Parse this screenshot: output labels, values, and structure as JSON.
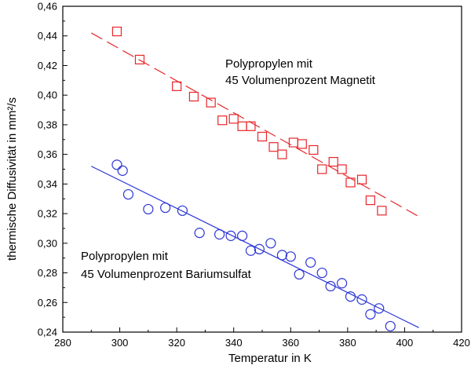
{
  "chart_data": {
    "type": "scatter",
    "title": "",
    "xlabel": "Temperatur in K",
    "ylabel": "thermische Diffusivität in mm²/s",
    "xlim": [
      280,
      420
    ],
    "ylim": [
      0.24,
      0.46
    ],
    "x_ticks": [
      280,
      300,
      320,
      340,
      360,
      380,
      400,
      420
    ],
    "y_ticks": [
      0.24,
      0.26,
      0.28,
      0.3,
      0.32,
      0.34,
      0.36,
      0.38,
      0.4,
      0.42,
      0.44,
      0.46
    ],
    "x_tick_labels": [
      "280",
      "300",
      "320",
      "340",
      "360",
      "380",
      "400",
      "420"
    ],
    "y_tick_labels": [
      "0,24",
      "0,26",
      "0,28",
      "0,30",
      "0,32",
      "0,34",
      "0,36",
      "0,38",
      "0,40",
      "0,42",
      "0,44",
      "0,46"
    ],
    "grid": false,
    "annotations": [
      {
        "lines": [
          "Polypropylen mit",
          "45 Volumenprozent Magnetit"
        ]
      },
      {
        "lines": [
          "Polypropylen mit",
          "45 Volumenprozent Bariumsulfat"
        ]
      }
    ],
    "series": [
      {
        "marker": "square",
        "color": "#e8262a",
        "fit_style": "dashed",
        "fit": {
          "x": [
            290,
            405
          ],
          "y": [
            0.442,
            0.318
          ]
        },
        "x": [
          299,
          307,
          320,
          326,
          332,
          336,
          340,
          343,
          346,
          350,
          354,
          357,
          361,
          364,
          368,
          371,
          375,
          378,
          381,
          385,
          388,
          392
        ],
        "y": [
          0.443,
          0.424,
          0.406,
          0.399,
          0.395,
          0.383,
          0.384,
          0.379,
          0.379,
          0.372,
          0.365,
          0.36,
          0.368,
          0.367,
          0.363,
          0.35,
          0.355,
          0.35,
          0.341,
          0.343,
          0.329,
          0.322
        ]
      },
      {
        "marker": "circle",
        "color": "#2b35d6",
        "fit_style": "solid",
        "fit": {
          "x": [
            290,
            405
          ],
          "y": [
            0.352,
            0.243
          ]
        },
        "x": [
          299,
          301,
          303,
          310,
          316,
          322,
          328,
          335,
          339,
          343,
          346,
          349,
          353,
          357,
          360,
          363,
          367,
          371,
          374,
          378,
          381,
          385,
          388,
          391,
          395
        ],
        "y": [
          0.353,
          0.349,
          0.333,
          0.323,
          0.324,
          0.322,
          0.307,
          0.306,
          0.305,
          0.305,
          0.295,
          0.296,
          0.3,
          0.292,
          0.291,
          0.279,
          0.287,
          0.28,
          0.271,
          0.273,
          0.264,
          0.262,
          0.252,
          0.256,
          0.244
        ]
      }
    ]
  }
}
